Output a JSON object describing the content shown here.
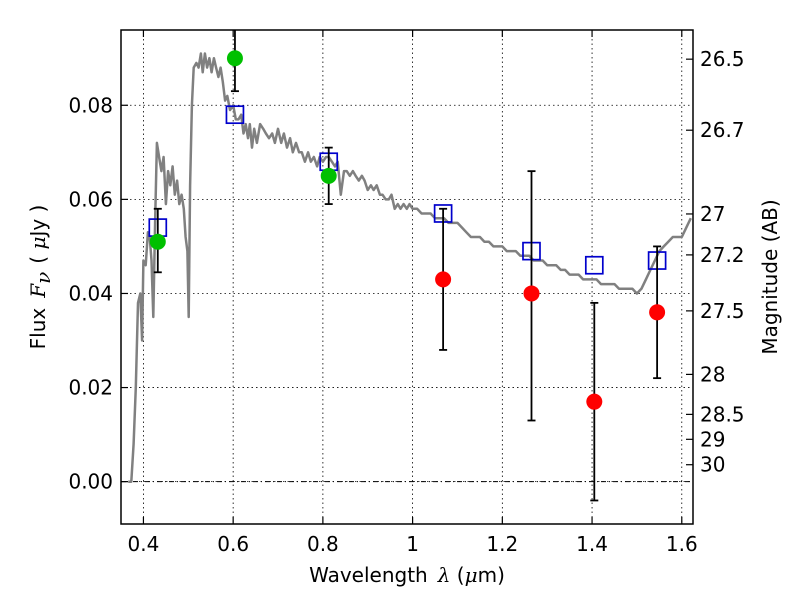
{
  "chart_data": {
    "type": "scatter",
    "xlabel": {
      "text": "Wavelength",
      "symbol": "λ",
      "unit_open": " (",
      "unit_mu": "μ",
      "unit_rest": "m)"
    },
    "ylabel": {
      "text": "Flux",
      "symbol": "F",
      "symbol_sub": "ν",
      "unit_open": "( ",
      "unit_mu": "μ",
      "unit_rest": "Jy )"
    },
    "ylabel_right": "Magnitude (AB)",
    "xlim": [
      0.35,
      1.625
    ],
    "ylim": [
      -0.009,
      0.096
    ],
    "grid": true,
    "x_ticks": [
      {
        "value": 0.4,
        "label": "0.4"
      },
      {
        "value": 0.6,
        "label": "0.6"
      },
      {
        "value": 0.8,
        "label": "0.8"
      },
      {
        "value": 1.0,
        "label": "1"
      },
      {
        "value": 1.2,
        "label": "1.2"
      },
      {
        "value": 1.4,
        "label": "1.4"
      },
      {
        "value": 1.6,
        "label": "1.6"
      }
    ],
    "y_ticks": [
      {
        "value": 0.0,
        "label": "0.00"
      },
      {
        "value": 0.02,
        "label": "0.02"
      },
      {
        "value": 0.04,
        "label": "0.04"
      },
      {
        "value": 0.06,
        "label": "0.06"
      },
      {
        "value": 0.08,
        "label": "0.08"
      }
    ],
    "right_ticks": [
      {
        "flux": 0.0898,
        "label": "26.5"
      },
      {
        "flux": 0.0747,
        "label": "26.7"
      },
      {
        "flux": 0.0569,
        "label": "27"
      },
      {
        "flux": 0.0482,
        "label": "27.2"
      },
      {
        "flux": 0.0363,
        "label": "27.5"
      },
      {
        "flux": 0.0228,
        "label": "28"
      },
      {
        "flux": 0.0143,
        "label": "28.5"
      },
      {
        "flux": 0.009,
        "label": "29"
      },
      {
        "flux": 0.0036,
        "label": "30"
      }
    ],
    "zero_line": 0.0,
    "series": [
      {
        "kind": "line",
        "color": "#808080",
        "points": [
          [
            0.366,
            0.0
          ],
          [
            0.373,
            0.0
          ],
          [
            0.378,
            0.008
          ],
          [
            0.383,
            0.02
          ],
          [
            0.388,
            0.038
          ],
          [
            0.393,
            0.04
          ],
          [
            0.397,
            0.03
          ],
          [
            0.4,
            0.047
          ],
          [
            0.405,
            0.046
          ],
          [
            0.41,
            0.053
          ],
          [
            0.414,
            0.052
          ],
          [
            0.418,
            0.047
          ],
          [
            0.422,
            0.035
          ],
          [
            0.426,
            0.055
          ],
          [
            0.43,
            0.072
          ],
          [
            0.435,
            0.069
          ],
          [
            0.44,
            0.066
          ],
          [
            0.445,
            0.069
          ],
          [
            0.45,
            0.059
          ],
          [
            0.455,
            0.066
          ],
          [
            0.46,
            0.063
          ],
          [
            0.465,
            0.067
          ],
          [
            0.47,
            0.061
          ],
          [
            0.475,
            0.064
          ],
          [
            0.48,
            0.059
          ],
          [
            0.485,
            0.061
          ],
          [
            0.49,
            0.058
          ],
          [
            0.494,
            0.052
          ],
          [
            0.498,
            0.049
          ],
          [
            0.501,
            0.035
          ],
          [
            0.504,
            0.063
          ],
          [
            0.508,
            0.08
          ],
          [
            0.512,
            0.088
          ],
          [
            0.518,
            0.089
          ],
          [
            0.523,
            0.088
          ],
          [
            0.528,
            0.091
          ],
          [
            0.532,
            0.087
          ],
          [
            0.537,
            0.091
          ],
          [
            0.542,
            0.088
          ],
          [
            0.547,
            0.09
          ],
          [
            0.552,
            0.087
          ],
          [
            0.557,
            0.09
          ],
          [
            0.562,
            0.088
          ],
          [
            0.567,
            0.086
          ],
          [
            0.572,
            0.088
          ],
          [
            0.577,
            0.085
          ],
          [
            0.582,
            0.081
          ],
          [
            0.587,
            0.082
          ],
          [
            0.593,
            0.079
          ],
          [
            0.6,
            0.08
          ],
          [
            0.606,
            0.077
          ],
          [
            0.612,
            0.077
          ],
          [
            0.618,
            0.078
          ],
          [
            0.623,
            0.074
          ],
          [
            0.628,
            0.076
          ],
          [
            0.633,
            0.073
          ],
          [
            0.637,
            0.076
          ],
          [
            0.642,
            0.071
          ],
          [
            0.647,
            0.075
          ],
          [
            0.653,
            0.072
          ],
          [
            0.66,
            0.076
          ],
          [
            0.667,
            0.075
          ],
          [
            0.673,
            0.074
          ],
          [
            0.68,
            0.073
          ],
          [
            0.687,
            0.074
          ],
          [
            0.693,
            0.072
          ],
          [
            0.7,
            0.075
          ],
          [
            0.707,
            0.072
          ],
          [
            0.713,
            0.074
          ],
          [
            0.72,
            0.071
          ],
          [
            0.727,
            0.073
          ],
          [
            0.733,
            0.07
          ],
          [
            0.74,
            0.072
          ],
          [
            0.747,
            0.07
          ],
          [
            0.753,
            0.07
          ],
          [
            0.76,
            0.068
          ],
          [
            0.767,
            0.07
          ],
          [
            0.773,
            0.068
          ],
          [
            0.78,
            0.069
          ],
          [
            0.787,
            0.067
          ],
          [
            0.793,
            0.069
          ],
          [
            0.8,
            0.068
          ],
          [
            0.807,
            0.069
          ],
          [
            0.813,
            0.069
          ],
          [
            0.82,
            0.068
          ],
          [
            0.827,
            0.067
          ],
          [
            0.833,
            0.068
          ],
          [
            0.84,
            0.061
          ],
          [
            0.847,
            0.066
          ],
          [
            0.853,
            0.066
          ],
          [
            0.86,
            0.065
          ],
          [
            0.867,
            0.066
          ],
          [
            0.873,
            0.065
          ],
          [
            0.88,
            0.064
          ],
          [
            0.887,
            0.065
          ],
          [
            0.893,
            0.064
          ],
          [
            0.9,
            0.062
          ],
          [
            0.907,
            0.063
          ],
          [
            0.913,
            0.062
          ],
          [
            0.92,
            0.063
          ],
          [
            0.927,
            0.061
          ],
          [
            0.933,
            0.061
          ],
          [
            0.94,
            0.06
          ],
          [
            0.947,
            0.06
          ],
          [
            0.953,
            0.061
          ],
          [
            0.96,
            0.058
          ],
          [
            0.967,
            0.059
          ],
          [
            0.973,
            0.058
          ],
          [
            0.98,
            0.059
          ],
          [
            0.987,
            0.058
          ],
          [
            0.993,
            0.059
          ],
          [
            1.0,
            0.058
          ],
          [
            1.01,
            0.058
          ],
          [
            1.02,
            0.057
          ],
          [
            1.03,
            0.057
          ],
          [
            1.04,
            0.057
          ],
          [
            1.05,
            0.056
          ],
          [
            1.06,
            0.056
          ],
          [
            1.07,
            0.056
          ],
          [
            1.08,
            0.055
          ],
          [
            1.09,
            0.055
          ],
          [
            1.1,
            0.055
          ],
          [
            1.11,
            0.054
          ],
          [
            1.12,
            0.053
          ],
          [
            1.13,
            0.052
          ],
          [
            1.14,
            0.052
          ],
          [
            1.15,
            0.052
          ],
          [
            1.16,
            0.051
          ],
          [
            1.17,
            0.051
          ],
          [
            1.18,
            0.05
          ],
          [
            1.19,
            0.05
          ],
          [
            1.2,
            0.05
          ],
          [
            1.21,
            0.049
          ],
          [
            1.22,
            0.049
          ],
          [
            1.23,
            0.049
          ],
          [
            1.24,
            0.048
          ],
          [
            1.25,
            0.048
          ],
          [
            1.26,
            0.048
          ],
          [
            1.27,
            0.047
          ],
          [
            1.28,
            0.047
          ],
          [
            1.29,
            0.047
          ],
          [
            1.3,
            0.046
          ],
          [
            1.31,
            0.046
          ],
          [
            1.32,
            0.046
          ],
          [
            1.33,
            0.045
          ],
          [
            1.34,
            0.045
          ],
          [
            1.35,
            0.044
          ],
          [
            1.36,
            0.044
          ],
          [
            1.37,
            0.044
          ],
          [
            1.38,
            0.043
          ],
          [
            1.39,
            0.043
          ],
          [
            1.4,
            0.043
          ],
          [
            1.41,
            0.043
          ],
          [
            1.42,
            0.042
          ],
          [
            1.43,
            0.042
          ],
          [
            1.44,
            0.042
          ],
          [
            1.45,
            0.042
          ],
          [
            1.46,
            0.041
          ],
          [
            1.47,
            0.041
          ],
          [
            1.48,
            0.041
          ],
          [
            1.49,
            0.041
          ],
          [
            1.5,
            0.04
          ],
          [
            1.51,
            0.041
          ],
          [
            1.52,
            0.043
          ],
          [
            1.53,
            0.045
          ],
          [
            1.54,
            0.047
          ],
          [
            1.55,
            0.049
          ],
          [
            1.56,
            0.05
          ],
          [
            1.57,
            0.051
          ],
          [
            1.58,
            0.052
          ],
          [
            1.59,
            0.052
          ],
          [
            1.6,
            0.052
          ],
          [
            1.61,
            0.054
          ],
          [
            1.62,
            0.056
          ]
        ]
      },
      {
        "kind": "open_square",
        "color": "#0000cc",
        "points": [
          [
            0.432,
            0.054
          ],
          [
            0.604,
            0.078
          ],
          [
            0.813,
            0.068
          ],
          [
            1.068,
            0.057
          ],
          [
            1.265,
            0.049
          ],
          [
            1.405,
            0.046
          ],
          [
            1.545,
            0.047
          ]
        ]
      },
      {
        "kind": "filled_circle_errorbar",
        "color": "#00c000",
        "points": [
          {
            "x": 0.432,
            "y": 0.051,
            "err_low": 0.0445,
            "err_high": 0.058
          },
          {
            "x": 0.604,
            "y": 0.09,
            "err_low": 0.083,
            "err_high": 0.098
          },
          {
            "x": 0.813,
            "y": 0.065,
            "err_low": 0.059,
            "err_high": 0.071
          }
        ]
      },
      {
        "kind": "filled_circle_errorbar",
        "color": "#ff0000",
        "points": [
          {
            "x": 1.068,
            "y": 0.043,
            "err_low": 0.028,
            "err_high": 0.058
          },
          {
            "x": 1.265,
            "y": 0.04,
            "err_low": 0.013,
            "err_high": 0.066
          },
          {
            "x": 1.405,
            "y": 0.017,
            "err_low": -0.004,
            "err_high": 0.038
          },
          {
            "x": 1.545,
            "y": 0.036,
            "err_low": 0.022,
            "err_high": 0.05
          }
        ]
      }
    ]
  }
}
